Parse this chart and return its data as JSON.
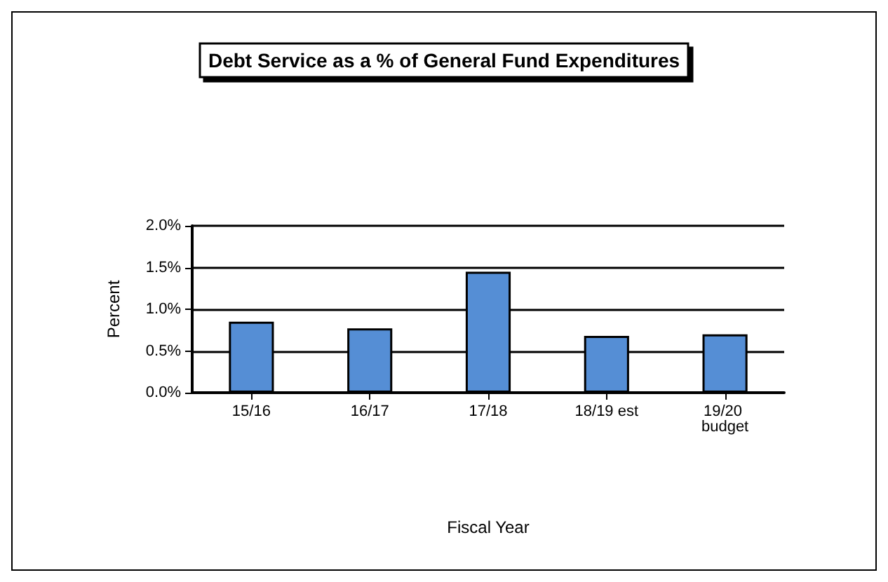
{
  "chart_data": {
    "type": "bar",
    "title": "Debt Service as a % of General Fund Expenditures",
    "xlabel": "Fiscal Year",
    "ylabel": "Percent",
    "categories": [
      "15/16",
      "16/17",
      "17/18",
      "18/19 est",
      "19/20 budget"
    ],
    "values": [
      0.85,
      0.77,
      1.45,
      0.68,
      0.7
    ],
    "color": "#558ed5",
    "ylim": [
      0,
      2
    ],
    "yticks": [
      {
        "value": 0,
        "label": "0.0%"
      },
      {
        "value": 0.5,
        "label": "0.5%"
      },
      {
        "value": 1,
        "label": "1.0%"
      },
      {
        "value": 1.5,
        "label": "1.5%"
      },
      {
        "value": 2,
        "label": "2.0%"
      }
    ],
    "grid": "y"
  }
}
